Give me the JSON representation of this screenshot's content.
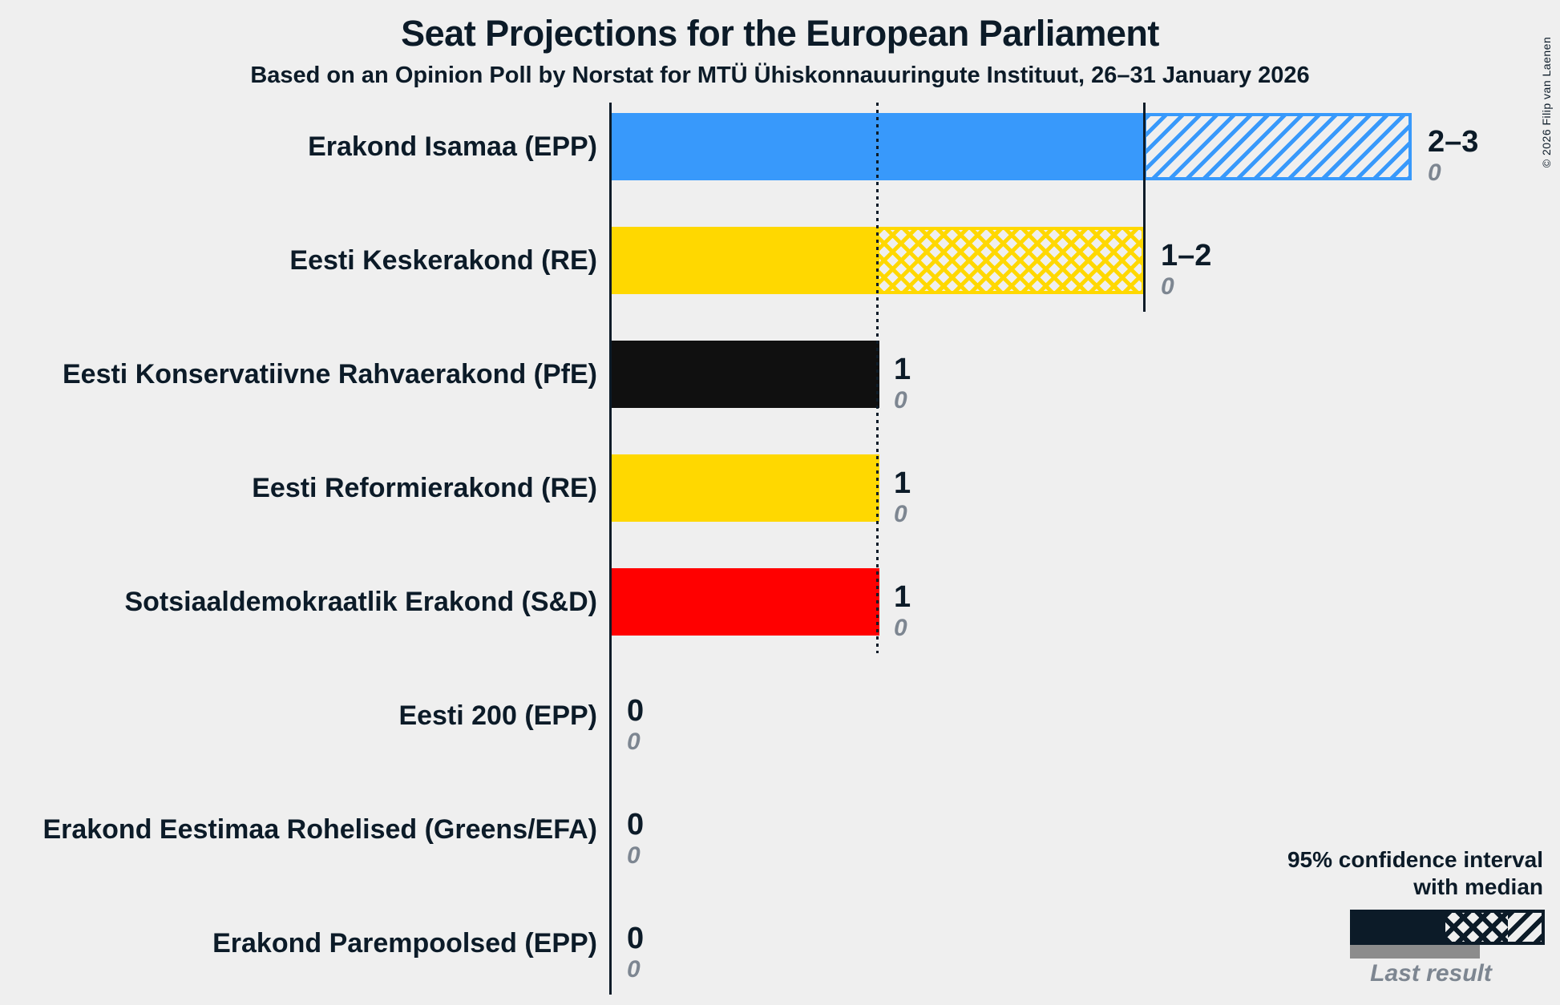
{
  "title": "Seat Projections for the European Parliament",
  "subtitle": "Based on an Opinion Poll by Norstat for MTÜ Ühiskonnauuringute Instituut, 26–31 January 2026",
  "copyright": "© 2026 Filip van Laenen",
  "legend": {
    "ci_line1": "95% confidence interval",
    "ci_line2": "with median",
    "last_result": "Last result"
  },
  "colors": {
    "background": "#efefef",
    "text": "#0c1b28",
    "grid": "#0c1b28",
    "muted_gray": "#7d8691",
    "last_result_bar": "#8c8c8c",
    "legend_bar": "#0c1b28",
    "blue": "#3899fb",
    "yellow": "#ffd800",
    "black": "#101010",
    "red": "#ff0000"
  },
  "chart_data": {
    "type": "bar",
    "orientation": "horizontal",
    "title": "Seat Projections for the European Parliament",
    "subtitle": "Based on an Opinion Poll by Norstat for MTÜ Ühiskonnauuringute Instituut, 26–31 January 2026",
    "unit": "seats",
    "x_axis": {
      "min": 0,
      "max": 3.55,
      "gridlines": [
        {
          "value": 0,
          "style": "solid",
          "span_rows": 8
        },
        {
          "value": 1,
          "style": "dotted",
          "span_rows": 5
        },
        {
          "value": 2,
          "style": "solid",
          "span_rows": 2
        }
      ]
    },
    "legend_note": "solid = up to CI low, crosshatch = CI low to median, diagonal hatch = median to CI high",
    "rows": [
      {
        "party": "Erakond Isamaa (EPP)",
        "ci_low": 2,
        "median": 2,
        "ci_high": 3,
        "value_label": "2–3",
        "last_result": "0",
        "color": "#3899fb"
      },
      {
        "party": "Eesti Keskerakond (RE)",
        "ci_low": 1,
        "median": 2,
        "ci_high": 2,
        "value_label": "1–2",
        "last_result": "0",
        "color": "#ffd800"
      },
      {
        "party": "Eesti Konservatiivne Rahvaerakond (PfE)",
        "ci_low": 1,
        "median": 1,
        "ci_high": 1,
        "value_label": "1",
        "last_result": "0",
        "color": "#101010"
      },
      {
        "party": "Eesti Reformierakond (RE)",
        "ci_low": 1,
        "median": 1,
        "ci_high": 1,
        "value_label": "1",
        "last_result": "0",
        "color": "#ffd800"
      },
      {
        "party": "Sotsiaaldemokraatlik Erakond (S&D)",
        "ci_low": 1,
        "median": 1,
        "ci_high": 1,
        "value_label": "1",
        "last_result": "0",
        "color": "#ff0000"
      },
      {
        "party": "Eesti 200 (EPP)",
        "ci_low": 0,
        "median": 0,
        "ci_high": 0,
        "value_label": "0",
        "last_result": "0",
        "color": "#3899fb"
      },
      {
        "party": "Erakond Eestimaa Rohelised (Greens/EFA)",
        "ci_low": 0,
        "median": 0,
        "ci_high": 0,
        "value_label": "0",
        "last_result": "0",
        "color": "#5abf3c"
      },
      {
        "party": "Erakond Parempoolsed (EPP)",
        "ci_low": 0,
        "median": 0,
        "ci_high": 0,
        "value_label": "0",
        "last_result": "0",
        "color": "#3899fb"
      }
    ]
  }
}
